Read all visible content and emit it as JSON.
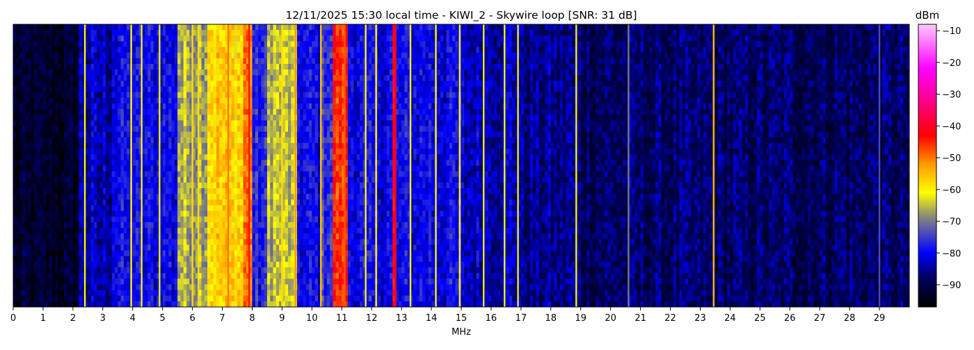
{
  "chart_data": {
    "type": "heatmap",
    "title": "12/11/2025 15:30 local time - KIWI_2 - Skywire loop [SNR: 31 dB]",
    "xlabel": "MHz",
    "ylabel": "",
    "xlim": [
      0,
      30
    ],
    "x_ticks": [
      "0",
      "1",
      "2",
      "3",
      "4",
      "5",
      "6",
      "7",
      "8",
      "9",
      "10",
      "11",
      "12",
      "13",
      "14",
      "15",
      "16",
      "17",
      "18",
      "19",
      "20",
      "21",
      "22",
      "23",
      "24",
      "25",
      "26",
      "27",
      "28",
      "29"
    ],
    "colorbar": {
      "label": "dBm",
      "range": [
        -97,
        -8
      ],
      "ticks": [
        "−10",
        "−20",
        "−30",
        "−40",
        "−50",
        "−60",
        "−70",
        "−80",
        "−90"
      ],
      "tick_values": [
        -10,
        -20,
        -30,
        -40,
        -50,
        -60,
        -70,
        -80,
        -90
      ],
      "colormap": [
        {
          "dbm": -97,
          "color": "#000000"
        },
        {
          "dbm": -88,
          "color": "#00005a"
        },
        {
          "dbm": -80,
          "color": "#0000ff"
        },
        {
          "dbm": -72,
          "color": "#6060a8"
        },
        {
          "dbm": -68,
          "color": "#909070"
        },
        {
          "dbm": -61,
          "color": "#ffff00"
        },
        {
          "dbm": -52,
          "color": "#ff9900"
        },
        {
          "dbm": -43,
          "color": "#ff0000"
        },
        {
          "dbm": -33,
          "color": "#ff0080"
        },
        {
          "dbm": -22,
          "color": "#ff00ff"
        },
        {
          "dbm": -8,
          "color": "#ffc8ff"
        }
      ]
    },
    "band_levels_dbm": [
      {
        "from": 0,
        "to": 2.2,
        "dbm": -93
      },
      {
        "from": 2.2,
        "to": 3.3,
        "dbm": -84
      },
      {
        "from": 3.3,
        "to": 5.5,
        "dbm": -80
      },
      {
        "from": 5.5,
        "to": 6.5,
        "dbm": -66
      },
      {
        "from": 6.5,
        "to": 7.7,
        "dbm": -57
      },
      {
        "from": 7.7,
        "to": 8.0,
        "dbm": -50
      },
      {
        "from": 8.0,
        "to": 8.5,
        "dbm": -78
      },
      {
        "from": 8.5,
        "to": 9.5,
        "dbm": -65
      },
      {
        "from": 9.5,
        "to": 10.3,
        "dbm": -80
      },
      {
        "from": 10.3,
        "to": 10.7,
        "dbm": -75
      },
      {
        "from": 10.7,
        "to": 11.2,
        "dbm": -46
      },
      {
        "from": 11.2,
        "to": 12.7,
        "dbm": -80
      },
      {
        "from": 12.7,
        "to": 12.85,
        "dbm": -43
      },
      {
        "from": 12.85,
        "to": 15.0,
        "dbm": -80
      },
      {
        "from": 15.0,
        "to": 17.0,
        "dbm": -83
      },
      {
        "from": 17.0,
        "to": 19.0,
        "dbm": -86
      },
      {
        "from": 19.0,
        "to": 30.0,
        "dbm": -88
      }
    ],
    "carriers": [
      {
        "mhz": 2.4,
        "dbm": -60
      },
      {
        "mhz": 3.95,
        "dbm": -60
      },
      {
        "mhz": 4.3,
        "dbm": -62
      },
      {
        "mhz": 4.9,
        "dbm": -62
      },
      {
        "mhz": 6.0,
        "dbm": -58
      },
      {
        "mhz": 6.2,
        "dbm": -58
      },
      {
        "mhz": 7.2,
        "dbm": -50
      },
      {
        "mhz": 7.9,
        "dbm": -44
      },
      {
        "mhz": 9.0,
        "dbm": -58
      },
      {
        "mhz": 9.45,
        "dbm": -52
      },
      {
        "mhz": 10.3,
        "dbm": -55
      },
      {
        "mhz": 11.1,
        "dbm": -48
      },
      {
        "mhz": 11.8,
        "dbm": -60
      },
      {
        "mhz": 12.15,
        "dbm": -60
      },
      {
        "mhz": 12.8,
        "dbm": -42
      },
      {
        "mhz": 13.3,
        "dbm": -60
      },
      {
        "mhz": 14.15,
        "dbm": -60
      },
      {
        "mhz": 14.95,
        "dbm": -60
      },
      {
        "mhz": 15.75,
        "dbm": -62
      },
      {
        "mhz": 16.45,
        "dbm": -62
      },
      {
        "mhz": 16.9,
        "dbm": -62
      },
      {
        "mhz": 18.85,
        "dbm": -62
      },
      {
        "mhz": 20.6,
        "dbm": -70
      },
      {
        "mhz": 23.45,
        "dbm": -55
      },
      {
        "mhz": 29.0,
        "dbm": -74
      }
    ]
  }
}
